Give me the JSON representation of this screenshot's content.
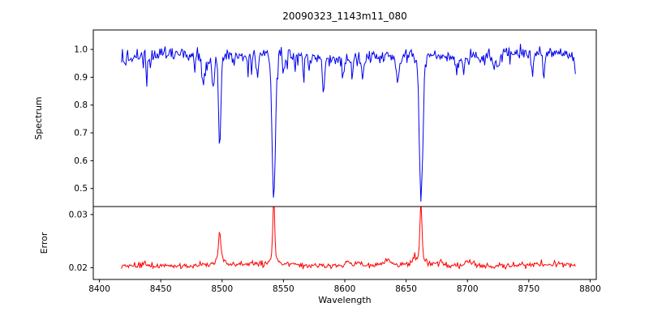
{
  "chart_data": {
    "type": "line",
    "title": "20090323_1143m11_080",
    "xlabel": "Wavelength",
    "grid": false,
    "legend": "none",
    "x_range": [
      8418,
      8788
    ],
    "xlim": [
      8395,
      8805
    ],
    "x_ticks": [
      {
        "v": 8400,
        "label": "8400"
      },
      {
        "v": 8450,
        "label": "8450"
      },
      {
        "v": 8500,
        "label": "8500"
      },
      {
        "v": 8550,
        "label": "8550"
      },
      {
        "v": 8600,
        "label": "8600"
      },
      {
        "v": 8650,
        "label": "8650"
      },
      {
        "v": 8700,
        "label": "8700"
      },
      {
        "v": 8750,
        "label": "8750"
      },
      {
        "v": 8800,
        "label": "8800"
      }
    ],
    "panels": [
      {
        "name": "spectrum",
        "ylabel": "Spectrum",
        "color": "#0000ee",
        "ylim": [
          0.435,
          1.07
        ],
        "y_ticks": [
          {
            "v": 0.5,
            "label": "0.5"
          },
          {
            "v": 0.6,
            "label": "0.6"
          },
          {
            "v": 0.7,
            "label": "0.7"
          },
          {
            "v": 0.8,
            "label": "0.8"
          },
          {
            "v": 0.9,
            "label": "0.9"
          },
          {
            "v": 1.0,
            "label": "1.0"
          }
        ],
        "continuum": 0.975,
        "noise_sigma": 0.016,
        "absorption_lines": [
          {
            "center": 8498.0,
            "depth": 0.335,
            "sigma": 1.3,
            "min_value": 0.64
          },
          {
            "center": 8542.1,
            "depth": 0.52,
            "sigma": 2.0,
            "min_value": 0.46
          },
          {
            "center": 8662.1,
            "depth": 0.51,
            "sigma": 1.9,
            "min_value": 0.47
          }
        ]
      },
      {
        "name": "error",
        "ylabel": "Error",
        "color": "#ff0000",
        "ylim": [
          0.0178,
          0.0315
        ],
        "y_ticks": [
          {
            "v": 0.02,
            "label": "0.02"
          },
          {
            "v": 0.03,
            "label": "0.03"
          }
        ],
        "baseline": 0.0205,
        "noise_sigma": 0.00025,
        "peaks": [
          {
            "center": 8498.0,
            "height": 0.0048,
            "sigma": 1.2,
            "peak_value": 0.025
          },
          {
            "center": 8542.1,
            "height": 0.0105,
            "sigma": 1.1,
            "peak_value": 0.031
          },
          {
            "center": 8662.1,
            "height": 0.0106,
            "sigma": 1.1,
            "peak_value": 0.031
          }
        ]
      }
    ],
    "frame_color": "#000000"
  }
}
